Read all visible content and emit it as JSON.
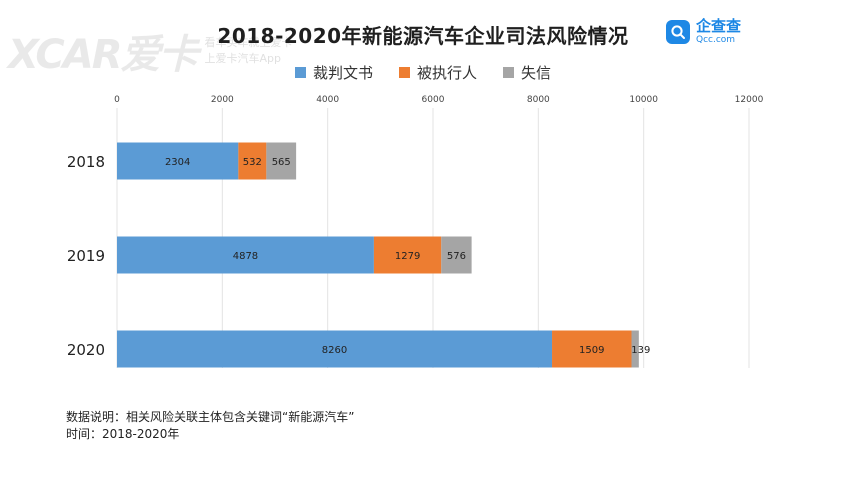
{
  "title": "2018-2020年新能源汽车企业司法风险情况",
  "logo": {
    "name_cn": "企查查",
    "name_en": "Qcc.com"
  },
  "watermark": {
    "brand": "XCAR爱卡",
    "line1": "看车买车就上爱卡",
    "line2": "上爱卡汽车App"
  },
  "footnote": {
    "line1": "数据说明：相关风险关联主体包含关键词“新能源汽车”",
    "line2": "时间：2018-2020年"
  },
  "chart_data": {
    "type": "bar",
    "orientation": "horizontal",
    "stacked": true,
    "categories": [
      "2018",
      "2019",
      "2020"
    ],
    "series": [
      {
        "name": "裁判文书",
        "color": "#5b9bd5",
        "values": [
          2304,
          4878,
          8260
        ]
      },
      {
        "name": "被执行人",
        "color": "#ed7d31",
        "values": [
          532,
          1279,
          1509
        ]
      },
      {
        "name": "失信",
        "color": "#a5a5a5",
        "values": [
          565,
          576,
          139
        ]
      }
    ],
    "xlim": [
      0,
      12000
    ],
    "xticks": [
      "0",
      "2000",
      "4000",
      "6000",
      "8000",
      "10000",
      "12000"
    ],
    "legend_position": "top",
    "grid": true
  }
}
